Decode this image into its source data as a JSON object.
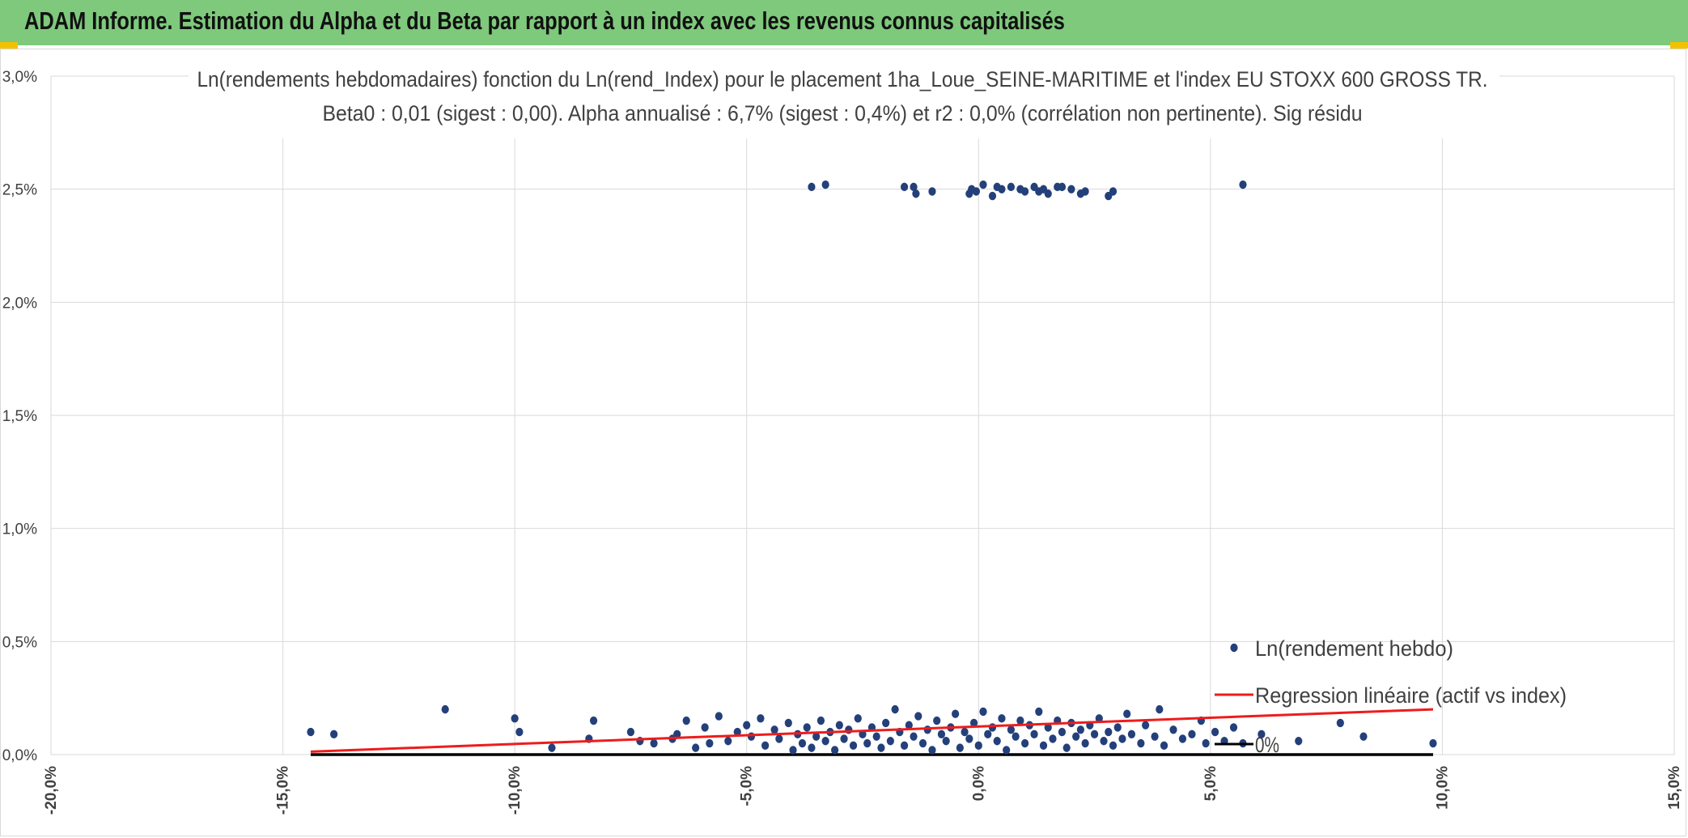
{
  "banner": {
    "title": "ADAM Informe. Estimation du Alpha et du Beta par rapport à un index avec les revenus connus capitalisés",
    "color": "#7ec97c",
    "corner_color": "#f2c200"
  },
  "chart_data": {
    "type": "scatter",
    "title": "Ln(rendements hebdomadaires) fonction du Ln(rend_Index) pour le placement 1ha_Loue_SEINE-MARITIME et l'index EU STOXX 600 GROSS TR.",
    "subtitle": "Beta0 : 0,01 (sigest : 0,00). Alpha annualisé : 6,7% (sigest : 0,4%) et r2 : 0,0% (corrélation non pertinente). Sig résidu",
    "xlim": [
      -20,
      15
    ],
    "ylim": [
      0,
      3
    ],
    "x_ticks": [
      "-20,0%",
      "-15,0%",
      "-10,0%",
      "-5,0%",
      "0,0%",
      "5,0%",
      "10,0%",
      "15,0%"
    ],
    "y_ticks": [
      "0,0%",
      "0,5%",
      "1,0%",
      "1,5%",
      "2,0%",
      "2,5%",
      "3,0%"
    ],
    "grid": true,
    "legend_position": "bottom-right",
    "series": [
      {
        "name": "Ln(rendement hebdo)",
        "kind": "scatter",
        "color": "#24407a",
        "points": [
          [
            -3.6,
            2.51
          ],
          [
            -3.3,
            2.52
          ],
          [
            -1.6,
            2.51
          ],
          [
            -1.4,
            2.51
          ],
          [
            -1.35,
            2.48
          ],
          [
            -1.0,
            2.49
          ],
          [
            -0.2,
            2.48
          ],
          [
            -0.15,
            2.5
          ],
          [
            -0.05,
            2.49
          ],
          [
            0.1,
            2.52
          ],
          [
            0.3,
            2.47
          ],
          [
            0.4,
            2.51
          ],
          [
            0.5,
            2.5
          ],
          [
            0.7,
            2.51
          ],
          [
            0.9,
            2.5
          ],
          [
            1.0,
            2.49
          ],
          [
            1.2,
            2.51
          ],
          [
            1.3,
            2.49
          ],
          [
            1.4,
            2.5
          ],
          [
            1.5,
            2.48
          ],
          [
            1.7,
            2.51
          ],
          [
            1.8,
            2.51
          ],
          [
            2.0,
            2.5
          ],
          [
            2.2,
            2.48
          ],
          [
            2.3,
            2.49
          ],
          [
            2.8,
            2.47
          ],
          [
            2.9,
            2.49
          ],
          [
            5.7,
            2.52
          ],
          [
            -14.4,
            0.1
          ],
          [
            -13.9,
            0.09
          ],
          [
            -11.5,
            0.2
          ],
          [
            -10.0,
            0.16
          ],
          [
            -9.9,
            0.1
          ],
          [
            -9.2,
            0.03
          ],
          [
            -8.4,
            0.07
          ],
          [
            -8.3,
            0.15
          ],
          [
            -7.5,
            0.1
          ],
          [
            -7.3,
            0.06
          ],
          [
            -7.0,
            0.05
          ],
          [
            -6.6,
            0.07
          ],
          [
            -6.5,
            0.09
          ],
          [
            -6.3,
            0.15
          ],
          [
            -6.1,
            0.03
          ],
          [
            -5.9,
            0.12
          ],
          [
            -5.8,
            0.05
          ],
          [
            -5.6,
            0.17
          ],
          [
            -5.4,
            0.06
          ],
          [
            -5.2,
            0.1
          ],
          [
            -5.0,
            0.13
          ],
          [
            -4.9,
            0.08
          ],
          [
            -4.7,
            0.16
          ],
          [
            -4.6,
            0.04
          ],
          [
            -4.4,
            0.11
          ],
          [
            -4.3,
            0.07
          ],
          [
            -4.1,
            0.14
          ],
          [
            -4.0,
            0.02
          ],
          [
            -3.9,
            0.09
          ],
          [
            -3.8,
            0.05
          ],
          [
            -3.7,
            0.12
          ],
          [
            -3.6,
            0.03
          ],
          [
            -3.5,
            0.08
          ],
          [
            -3.4,
            0.15
          ],
          [
            -3.3,
            0.06
          ],
          [
            -3.2,
            0.1
          ],
          [
            -3.1,
            0.02
          ],
          [
            -3.0,
            0.13
          ],
          [
            -2.9,
            0.07
          ],
          [
            -2.8,
            0.11
          ],
          [
            -2.7,
            0.04
          ],
          [
            -2.6,
            0.16
          ],
          [
            -2.5,
            0.09
          ],
          [
            -2.4,
            0.05
          ],
          [
            -2.3,
            0.12
          ],
          [
            -2.2,
            0.08
          ],
          [
            -2.1,
            0.03
          ],
          [
            -2.0,
            0.14
          ],
          [
            -1.9,
            0.06
          ],
          [
            -1.8,
            0.2
          ],
          [
            -1.7,
            0.1
          ],
          [
            -1.6,
            0.04
          ],
          [
            -1.5,
            0.13
          ],
          [
            -1.4,
            0.08
          ],
          [
            -1.3,
            0.17
          ],
          [
            -1.2,
            0.05
          ],
          [
            -1.1,
            0.11
          ],
          [
            -1.0,
            0.02
          ],
          [
            -0.9,
            0.15
          ],
          [
            -0.8,
            0.09
          ],
          [
            -0.7,
            0.06
          ],
          [
            -0.6,
            0.12
          ],
          [
            -0.5,
            0.18
          ],
          [
            -0.4,
            0.03
          ],
          [
            -0.3,
            0.1
          ],
          [
            -0.2,
            0.07
          ],
          [
            -0.1,
            0.14
          ],
          [
            0.0,
            0.04
          ],
          [
            0.1,
            0.19
          ],
          [
            0.2,
            0.09
          ],
          [
            0.3,
            0.12
          ],
          [
            0.4,
            0.06
          ],
          [
            0.5,
            0.16
          ],
          [
            0.6,
            0.02
          ],
          [
            0.7,
            0.11
          ],
          [
            0.8,
            0.08
          ],
          [
            0.9,
            0.15
          ],
          [
            1.0,
            0.05
          ],
          [
            1.1,
            0.13
          ],
          [
            1.2,
            0.09
          ],
          [
            1.3,
            0.19
          ],
          [
            1.4,
            0.04
          ],
          [
            1.5,
            0.12
          ],
          [
            1.6,
            0.07
          ],
          [
            1.7,
            0.15
          ],
          [
            1.8,
            0.1
          ],
          [
            1.9,
            0.03
          ],
          [
            2.0,
            0.14
          ],
          [
            2.1,
            0.08
          ],
          [
            2.2,
            0.11
          ],
          [
            2.3,
            0.05
          ],
          [
            2.4,
            0.13
          ],
          [
            2.5,
            0.09
          ],
          [
            2.6,
            0.16
          ],
          [
            2.7,
            0.06
          ],
          [
            2.8,
            0.1
          ],
          [
            2.9,
            0.04
          ],
          [
            3.0,
            0.12
          ],
          [
            3.1,
            0.07
          ],
          [
            3.2,
            0.18
          ],
          [
            3.3,
            0.09
          ],
          [
            3.5,
            0.05
          ],
          [
            3.6,
            0.13
          ],
          [
            3.8,
            0.08
          ],
          [
            3.9,
            0.2
          ],
          [
            4.0,
            0.04
          ],
          [
            4.2,
            0.11
          ],
          [
            4.4,
            0.07
          ],
          [
            4.6,
            0.09
          ],
          [
            4.8,
            0.15
          ],
          [
            4.9,
            0.05
          ],
          [
            5.1,
            0.1
          ],
          [
            5.3,
            0.06
          ],
          [
            5.5,
            0.12
          ],
          [
            5.7,
            0.05
          ],
          [
            6.1,
            0.09
          ],
          [
            6.9,
            0.06
          ],
          [
            7.8,
            0.14
          ],
          [
            8.3,
            0.08
          ],
          [
            9.8,
            0.05
          ]
        ]
      },
      {
        "name": "Regression linéaire (actif vs index)",
        "kind": "line",
        "color": "#ee1c1c",
        "points": [
          [
            -14.4,
            0.013
          ],
          [
            9.8,
            0.2
          ]
        ]
      },
      {
        "name": "0%",
        "kind": "line",
        "color": "#000000",
        "points": [
          [
            -14.4,
            0.0
          ],
          [
            9.8,
            0.0
          ]
        ]
      }
    ]
  }
}
